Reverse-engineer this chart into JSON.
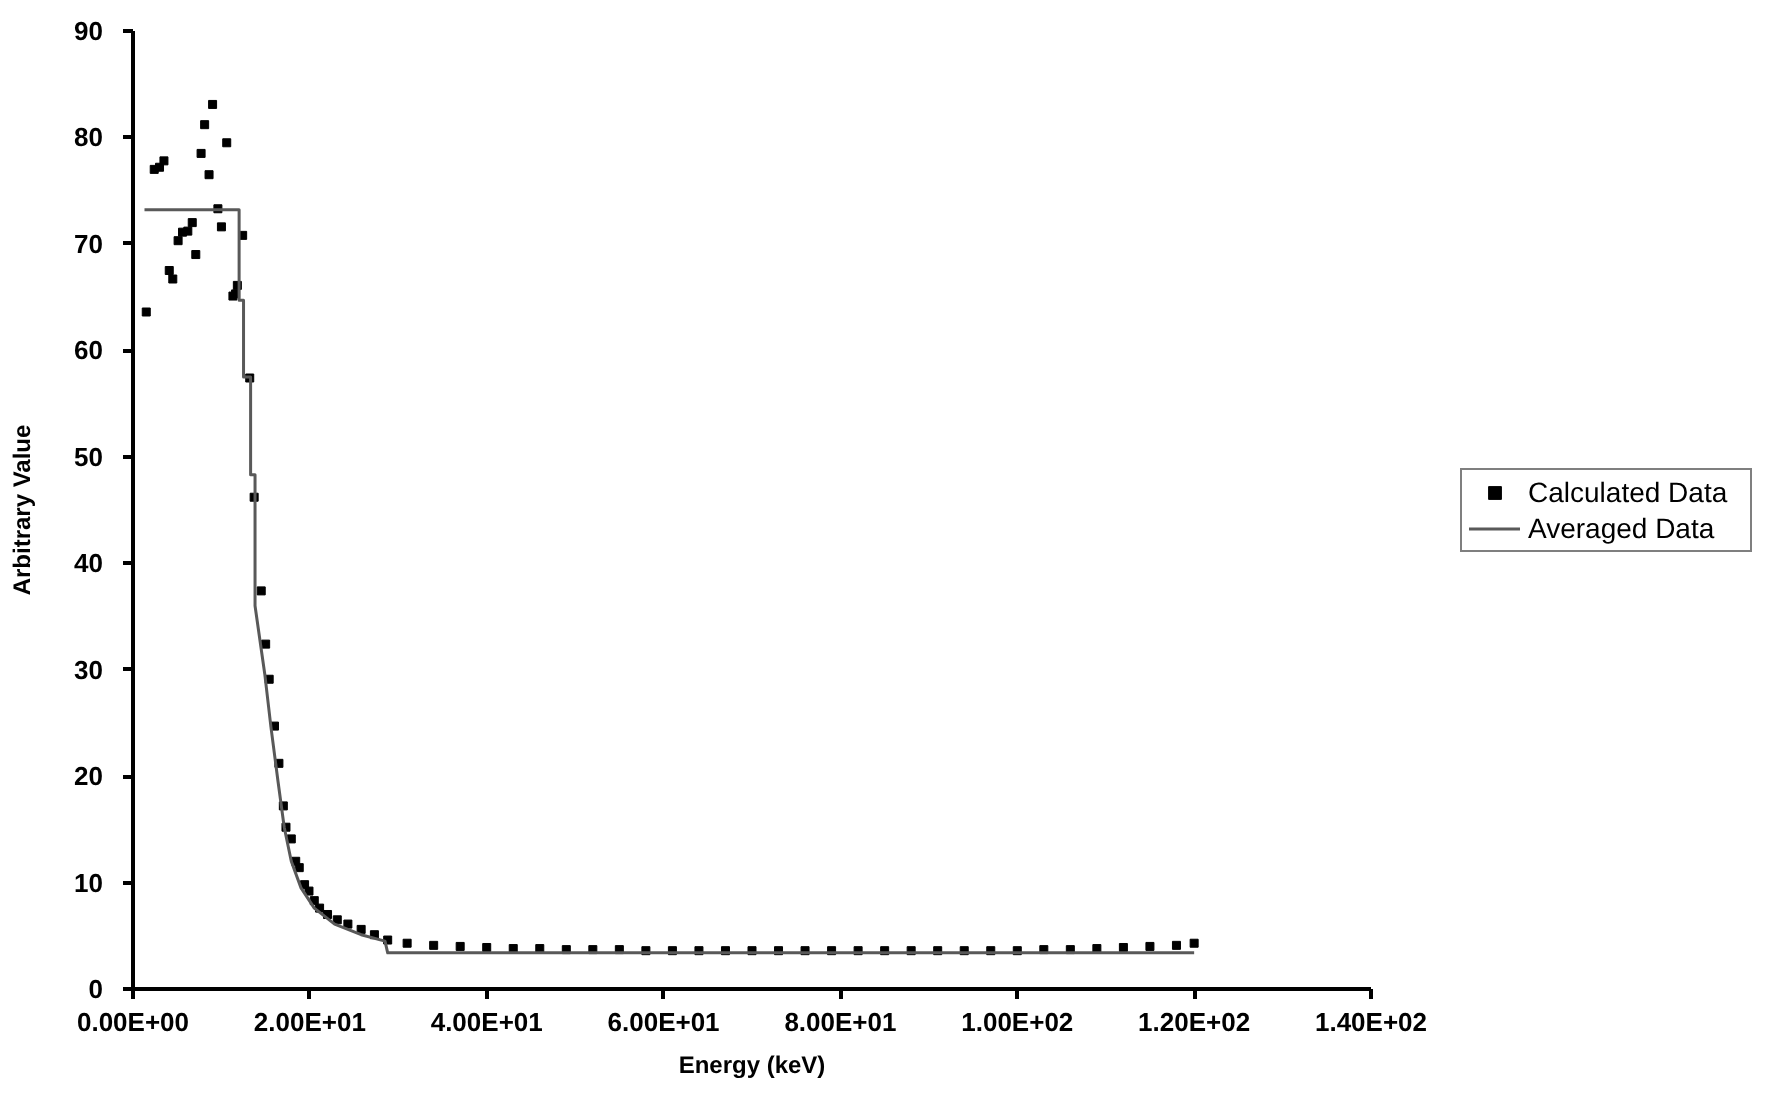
{
  "chart_data": {
    "type": "scatter",
    "xlabel": "Energy (keV)",
    "ylabel": "Arbitrary Value",
    "xlim": [
      0,
      140
    ],
    "ylim": [
      0,
      90
    ],
    "xticks": [
      {
        "value": 0,
        "label": "0.00E+00"
      },
      {
        "value": 20,
        "label": "2.00E+01"
      },
      {
        "value": 40,
        "label": "4.00E+01"
      },
      {
        "value": 60,
        "label": "6.00E+01"
      },
      {
        "value": 80,
        "label": "8.00E+01"
      },
      {
        "value": 100,
        "label": "1.00E+02"
      },
      {
        "value": 120,
        "label": "1.20E+02"
      },
      {
        "value": 140,
        "label": "1.40E+02"
      }
    ],
    "yticks": [
      0,
      10,
      20,
      30,
      40,
      50,
      60,
      70,
      80,
      90
    ],
    "grid": false,
    "legend": "right",
    "series": [
      {
        "name": "Calculated Data",
        "marker": "square",
        "color": "#000000",
        "x": [
          1.5,
          2.4,
          3.0,
          3.5,
          4.1,
          4.5,
          5.1,
          5.6,
          6.2,
          6.7,
          7.1,
          7.7,
          8.1,
          8.6,
          9.0,
          9.6,
          10.0,
          10.6,
          11.3,
          11.6,
          11.8,
          12.4,
          13.2,
          13.7,
          14.5,
          15.0,
          15.4,
          16.0,
          16.5,
          17.0,
          17.3,
          17.9,
          18.4,
          18.8,
          19.4,
          19.9,
          20.5,
          21.1,
          22.0,
          23.1,
          24.3,
          25.8,
          27.3,
          28.8,
          31,
          34,
          37,
          40,
          43,
          46,
          49,
          52,
          55,
          58,
          61,
          64,
          67,
          70,
          73,
          76,
          79,
          82,
          85,
          88,
          91,
          94,
          97,
          100,
          103,
          106,
          109,
          112,
          115,
          118,
          120
        ],
        "values": [
          63.6,
          77.0,
          77.2,
          77.8,
          67.5,
          66.7,
          70.3,
          71.1,
          71.2,
          72.0,
          69.0,
          78.5,
          81.2,
          76.5,
          83.1,
          73.3,
          71.6,
          79.5,
          65.1,
          65.3,
          66.1,
          70.8,
          57.4,
          46.2,
          37.4,
          32.4,
          29.1,
          24.7,
          21.2,
          17.2,
          15.2,
          14.1,
          12.0,
          11.4,
          9.8,
          9.2,
          8.3,
          7.6,
          7.0,
          6.5,
          6.1,
          5.6,
          5.1,
          4.6,
          4.3,
          4.1,
          4.0,
          3.9,
          3.8,
          3.8,
          3.7,
          3.7,
          3.7,
          3.6,
          3.6,
          3.6,
          3.6,
          3.6,
          3.6,
          3.6,
          3.6,
          3.6,
          3.6,
          3.6,
          3.6,
          3.6,
          3.6,
          3.6,
          3.7,
          3.7,
          3.8,
          3.9,
          4.0,
          4.1,
          4.3
        ]
      },
      {
        "name": "Averaged Data",
        "type": "line",
        "line_style": "solid",
        "color": "#595959",
        "x": [
          1.3,
          12.0,
          12.0,
          12.5,
          12.5,
          13.3,
          13.3,
          13.8,
          13.8,
          14.9,
          15.6,
          16.4,
          17.1,
          17.9,
          19.0,
          20.5,
          22.8,
          25.8,
          28.5,
          28.8,
          120.0
        ],
        "values": [
          73.2,
          73.2,
          64.7,
          64.7,
          57.5,
          57.5,
          48.3,
          48.3,
          36.0,
          29.6,
          24.6,
          19.5,
          15.2,
          12.0,
          9.5,
          7.6,
          6.1,
          5.1,
          4.5,
          3.4,
          3.4
        ]
      }
    ]
  }
}
